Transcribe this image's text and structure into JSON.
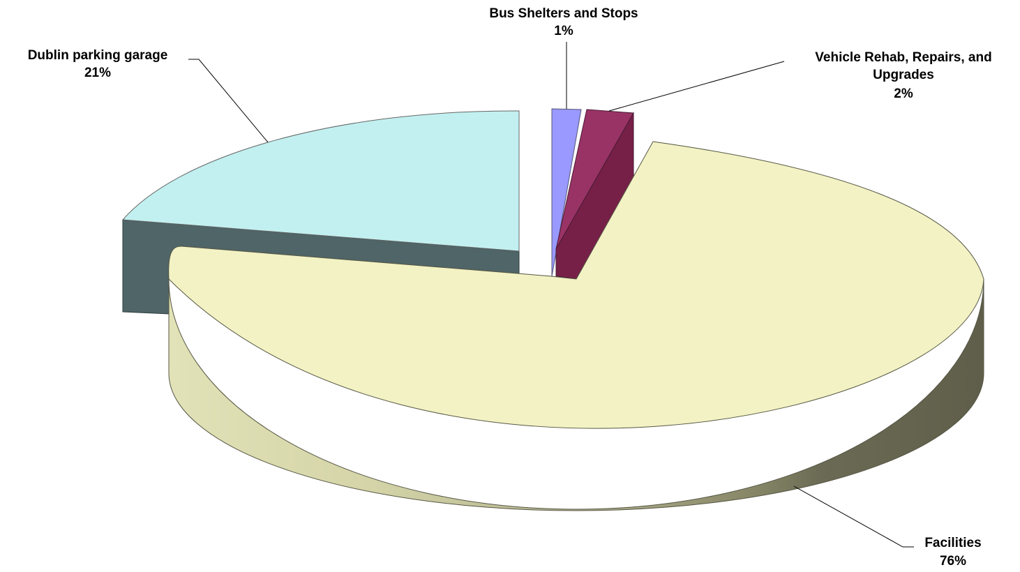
{
  "chart_data": {
    "type": "pie",
    "style": "3d-exploded",
    "title": "",
    "slices": [
      {
        "label": "Bus Shelters and Stops",
        "label_lines": [
          "Bus Shelters and Stops"
        ],
        "percent_label": "1%",
        "value": 1,
        "color": "#9999FF"
      },
      {
        "label": "Vehicle Rehab, Repairs, and Upgrades",
        "label_lines": [
          "Vehicle Rehab, Repairs, and",
          "Upgrades"
        ],
        "percent_label": "2%",
        "value": 2,
        "color": "#993366"
      },
      {
        "label": "Facilities",
        "label_lines": [
          "Facilities"
        ],
        "percent_label": "76%",
        "value": 76,
        "color": "#F2F2C4"
      },
      {
        "label": "Dublin parking garage",
        "label_lines": [
          "Dublin parking garage"
        ],
        "percent_label": "21%",
        "value": 21,
        "color": "#C2F0F0"
      }
    ],
    "legend": "none"
  }
}
